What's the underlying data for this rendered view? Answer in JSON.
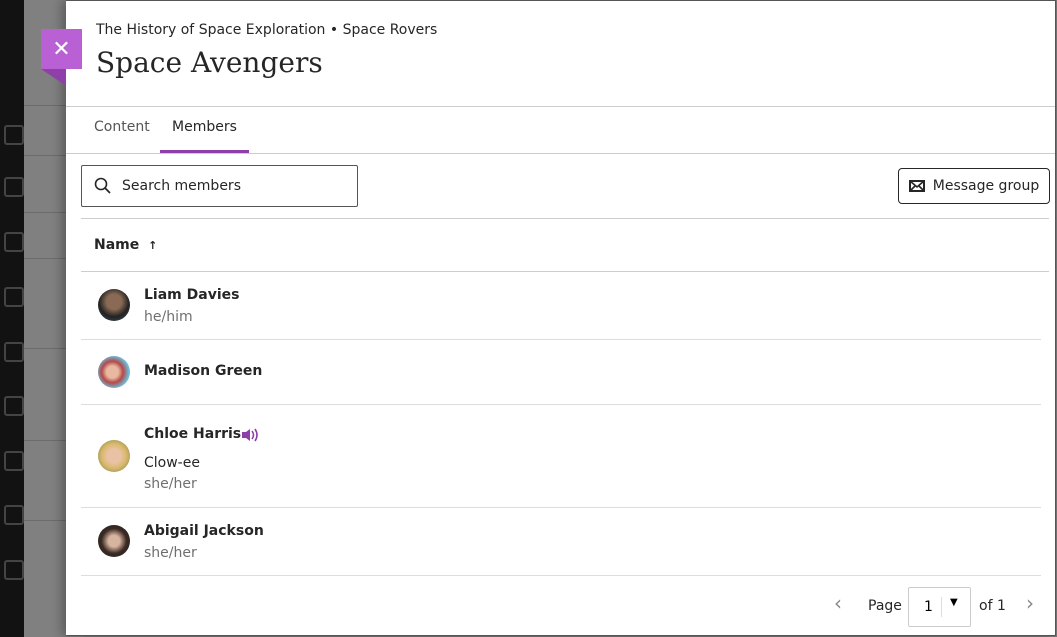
{
  "breadcrumb": "The History of Space Exploration • Space Rovers",
  "title": "Space Avengers",
  "close_icon": "close-icon",
  "tabs": [
    {
      "label": "Content",
      "active": false
    },
    {
      "label": "Members",
      "active": true
    }
  ],
  "search": {
    "placeholder": "Search members",
    "value": ""
  },
  "message_button": "Message group",
  "column": {
    "label": "Name",
    "sort": "ascending"
  },
  "members": [
    {
      "name": "Liam Davies",
      "pronouns": "he/him"
    },
    {
      "name": "Madison Green"
    },
    {
      "name": "Chloe Harris",
      "nickname": "Clow-ee",
      "pronouns": "she/her",
      "has_pronunciation_audio": true
    },
    {
      "name": "Abigail Jackson",
      "pronouns": "she/her"
    }
  ],
  "pagination": {
    "label": "Page",
    "current": "1",
    "of": "of 1"
  },
  "colors": {
    "accent": "#8f3fa8",
    "close_bg": "#b960d4"
  }
}
